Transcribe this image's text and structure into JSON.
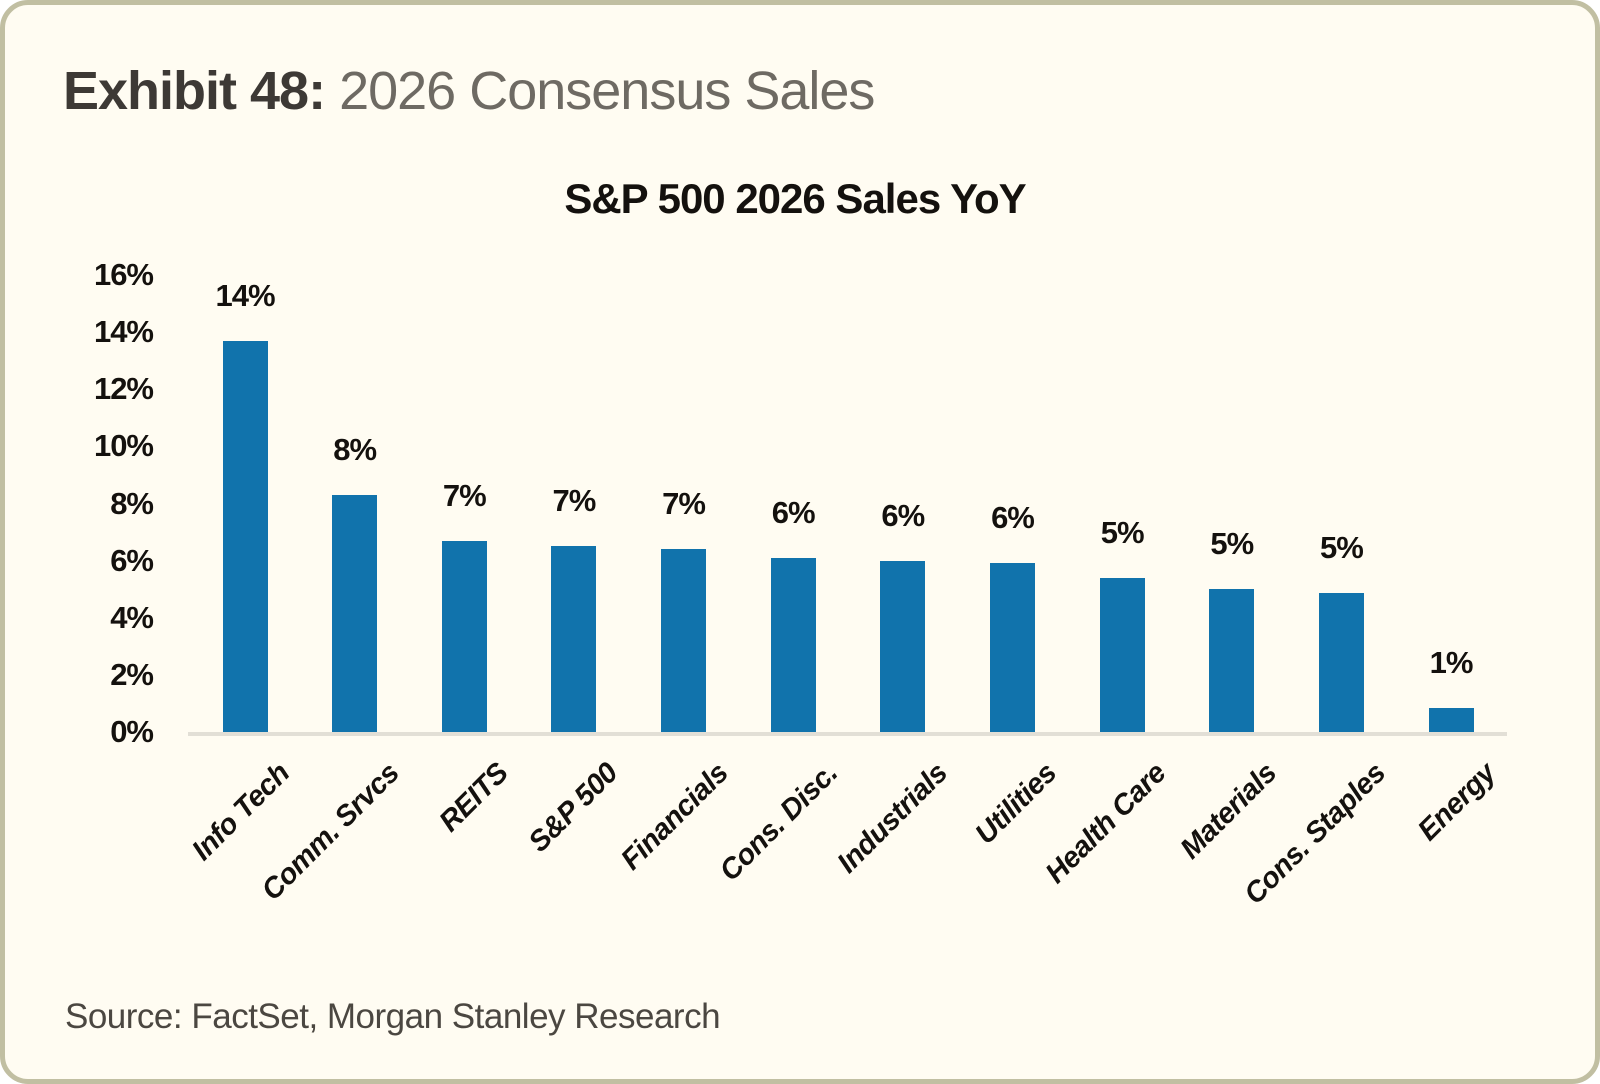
{
  "header": {
    "exhibit_label": "Exhibit 48:",
    "exhibit_title": "2026 Consensus Sales"
  },
  "footer": {
    "source": "Source: FactSet, Morgan Stanley Research"
  },
  "colors": {
    "bar": "#1173ac",
    "card_background": "#fffcf2",
    "card_border": "#c1bfa2",
    "axis_line": "#e2dfd6",
    "text_dark": "#14110e"
  },
  "chart_data": {
    "type": "bar",
    "title": "S&P 500 2026 Sales YoY",
    "categories": [
      "Info Tech",
      "Comm. Srvcs",
      "REITS",
      "S&P 500",
      "Financials",
      "Cons. Disc.",
      "Industrials",
      "Utilities",
      "Health Care",
      "Materials",
      "Cons. Staples",
      "Energy"
    ],
    "values": [
      13.7,
      8.3,
      6.7,
      6.5,
      6.4,
      6.1,
      6.0,
      5.9,
      5.4,
      5.0,
      4.85,
      0.85
    ],
    "bar_labels": [
      "14%",
      "8%",
      "7%",
      "7%",
      "7%",
      "6%",
      "6%",
      "6%",
      "5%",
      "5%",
      "5%",
      "1%"
    ],
    "xlabel": "",
    "ylabel": "",
    "ylim": [
      0,
      16
    ],
    "ytick_step": 2,
    "ytick_labels": [
      "0%",
      "2%",
      "4%",
      "6%",
      "8%",
      "10%",
      "12%",
      "14%",
      "16%"
    ],
    "grid": "off",
    "legend": "none"
  }
}
